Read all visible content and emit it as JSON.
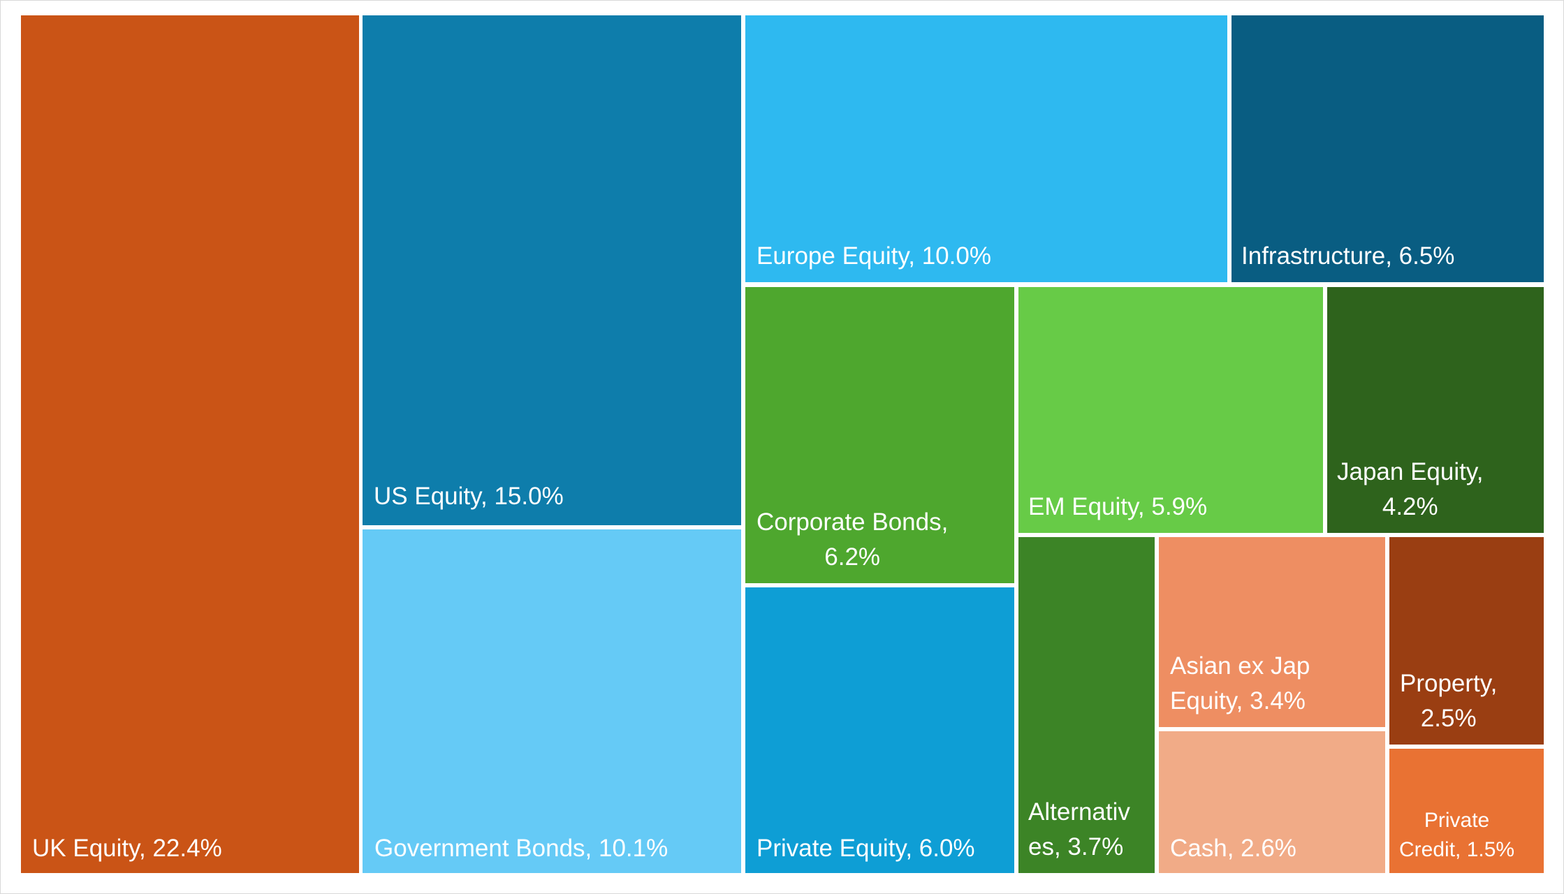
{
  "chart_data": {
    "type": "treemap",
    "title": "",
    "items": [
      {
        "name": "UK Equity",
        "value": 22.4,
        "color": "#CA5416",
        "label_lines": [
          "UK Equity, 22.4%"
        ]
      },
      {
        "name": "US Equity",
        "value": 15.0,
        "color": "#0E7DAB",
        "label_lines": [
          "US Equity, 15.0%"
        ]
      },
      {
        "name": "Government Bonds",
        "value": 10.1,
        "color": "#65CAF6",
        "label_lines": [
          "Government Bonds, 10.1%"
        ]
      },
      {
        "name": "Europe Equity",
        "value": 10.0,
        "color": "#2EB9F0",
        "label_lines": [
          "Europe Equity, 10.0%"
        ]
      },
      {
        "name": "Infrastructure",
        "value": 6.5,
        "color": "#095D82",
        "label_lines": [
          "Infrastructure, 6.5%"
        ]
      },
      {
        "name": "Corporate Bonds",
        "value": 6.2,
        "color": "#4EA72E",
        "label_lines": [
          "Corporate Bonds,",
          "6.2%"
        ]
      },
      {
        "name": "Private Equity",
        "value": 6.0,
        "color": "#0E9ED5",
        "label_lines": [
          "Private Equity, 6.0%"
        ]
      },
      {
        "name": "EM Equity",
        "value": 5.9,
        "color": "#67CB47",
        "label_lines": [
          "EM Equity, 5.9%"
        ]
      },
      {
        "name": "Japan Equity",
        "value": 4.2,
        "color": "#2E631C",
        "label_lines": [
          "Japan Equity,",
          "4.2%"
        ]
      },
      {
        "name": "Alternatives",
        "value": 3.7,
        "color": "#3C8426",
        "label_lines": [
          "Alternativ",
          "es, 3.7%"
        ]
      },
      {
        "name": "Asian ex Jap Equity",
        "value": 3.4,
        "color": "#EE8E62",
        "label_lines": [
          "Asian ex Jap",
          "Equity, 3.4%"
        ]
      },
      {
        "name": "Cash",
        "value": 2.6,
        "color": "#F1AB87",
        "label_lines": [
          "Cash, 2.6%"
        ]
      },
      {
        "name": "Property",
        "value": 2.5,
        "color": "#9A3E12",
        "label_lines": [
          "Property,",
          "2.5%"
        ]
      },
      {
        "name": "Private Credit",
        "value": 1.5,
        "color": "#E97233",
        "label_lines": [
          "Private",
          "Credit, 1.5%"
        ]
      }
    ]
  }
}
